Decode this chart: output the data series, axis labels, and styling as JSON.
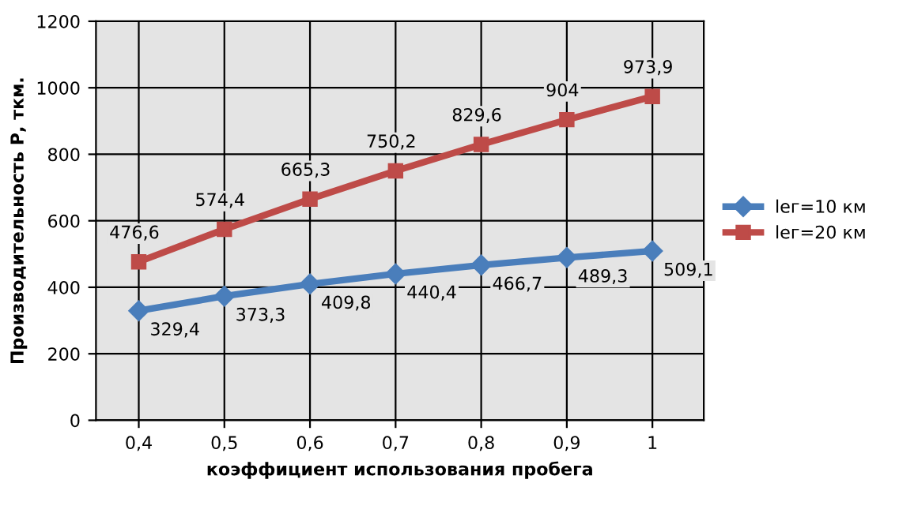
{
  "chart_data": {
    "type": "line",
    "xlabel": "коэффициент использования пробега",
    "ylabel": "Производительность Р, ткм.",
    "categories": [
      "0,4",
      "0,5",
      "0,6",
      "0,7",
      "0,8",
      "0,9",
      "1"
    ],
    "series": [
      {
        "name": "lег=10 км",
        "color": "#4a7ebb",
        "marker": "diamond",
        "values": [
          329.4,
          373.3,
          409.8,
          440.4,
          466.7,
          489.3,
          509.1
        ],
        "value_labels": [
          "329,4",
          "373,3",
          "409,8",
          "440,4",
          "466,7",
          "489,3",
          "509,1"
        ]
      },
      {
        "name": "lег=20 км",
        "color": "#be4b48",
        "marker": "square",
        "values": [
          476.6,
          574.4,
          665.3,
          750.2,
          829.6,
          904,
          973.9
        ],
        "value_labels": [
          "476,6",
          "574,4",
          "665,3",
          "750,2",
          "829,6",
          "904",
          "973,9"
        ]
      }
    ],
    "ylim": [
      0,
      1200
    ],
    "yticks": [
      0,
      200,
      400,
      600,
      800,
      1000,
      1200
    ],
    "grid": true,
    "legend": "right"
  }
}
